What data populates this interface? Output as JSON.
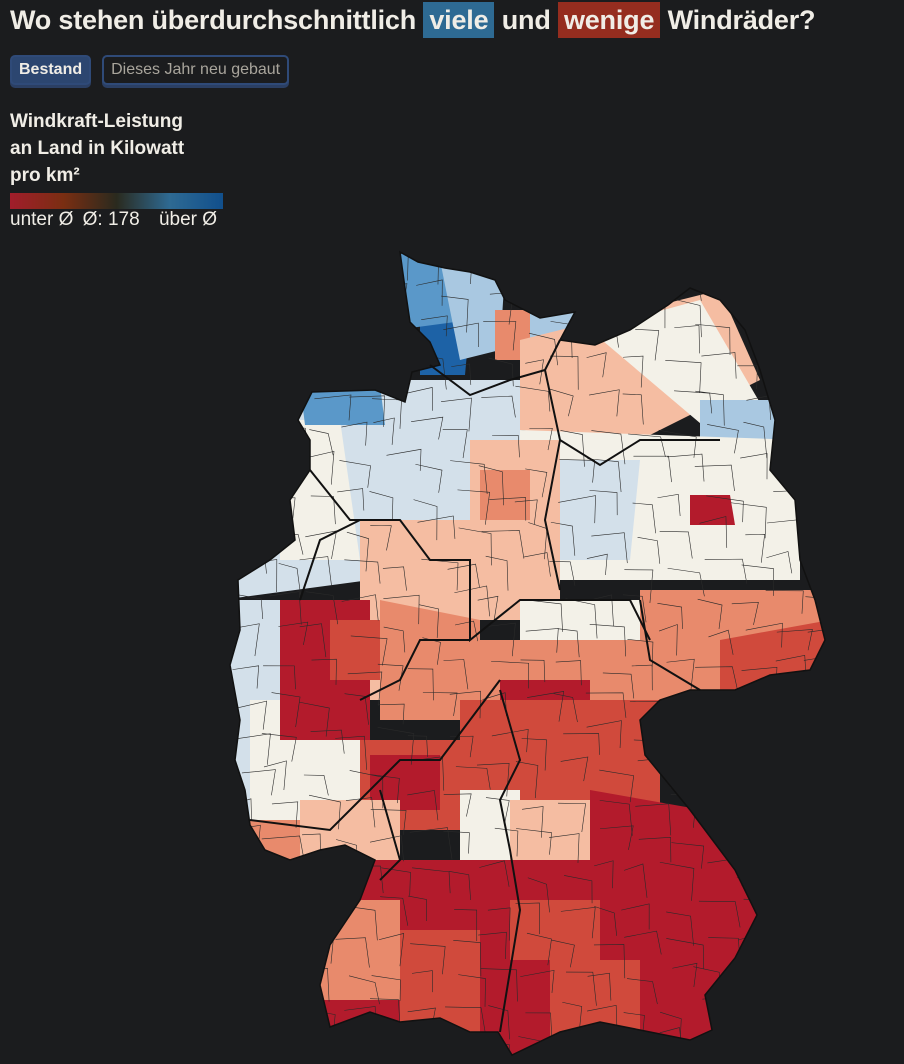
{
  "title": {
    "before": "Wo stehen überdurchschnittlich",
    "high": "viele",
    "middle": "und",
    "low": "wenige",
    "after": "Windräder?",
    "high_color": "#2e6a93",
    "low_color": "#952d1f"
  },
  "toggle": {
    "options": [
      "Bestand",
      "Dieses Jahr neu gebaut"
    ],
    "selected": "Bestand"
  },
  "legend": {
    "title_lines": [
      "Windkraft-Leistung",
      "an Land in Kilowatt",
      "pro km²"
    ],
    "below": "unter Ø",
    "average": "Ø: 178",
    "above": "über Ø",
    "gradient": [
      "#a21d2b",
      "#7a2e12",
      "#2a2a1e",
      "#2e6a93",
      "#114f8c"
    ]
  },
  "map": {
    "scale_colors": {
      "far_below": "#b31b2c",
      "below": "#d04a3c",
      "slightly_below": "#e88a6c",
      "near_below": "#f5bda2",
      "average": "#f3f1e8",
      "near_above": "#d3e0ea",
      "above": "#a9c8e1",
      "well_above": "#5a98c9",
      "far_above": "#1d62a6"
    },
    "background": "#1b1c1e"
  }
}
